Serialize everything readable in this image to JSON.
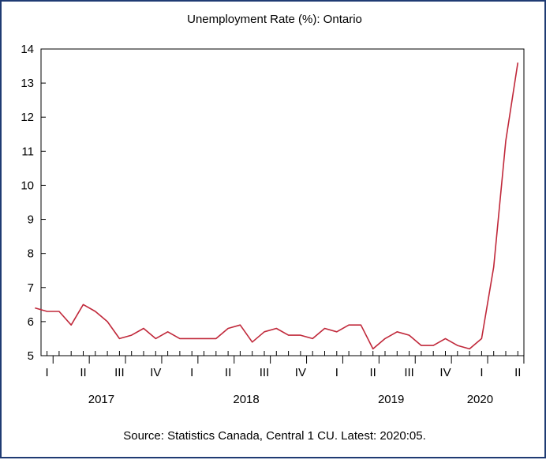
{
  "chart_data": {
    "type": "line",
    "title": "Unemployment Rate (%): Ontario",
    "xlabel": "",
    "ylabel": "",
    "ylim": [
      5,
      14
    ],
    "yticks": [
      5,
      6,
      7,
      8,
      9,
      10,
      11,
      12,
      13,
      14
    ],
    "grid": false,
    "x": [
      "2017-01",
      "2017-02",
      "2017-03",
      "2017-04",
      "2017-05",
      "2017-06",
      "2017-07",
      "2017-08",
      "2017-09",
      "2017-10",
      "2017-11",
      "2017-12",
      "2018-01",
      "2018-02",
      "2018-03",
      "2018-04",
      "2018-05",
      "2018-06",
      "2018-07",
      "2018-08",
      "2018-09",
      "2018-10",
      "2018-11",
      "2018-12",
      "2019-01",
      "2019-02",
      "2019-03",
      "2019-04",
      "2019-05",
      "2019-06",
      "2019-07",
      "2019-08",
      "2019-09",
      "2019-10",
      "2019-11",
      "2019-12",
      "2020-01",
      "2020-02",
      "2020-03",
      "2020-04",
      "2020-05"
    ],
    "series": [
      {
        "color": "#c0283a",
        "values": [
          6.4,
          6.3,
          6.3,
          5.9,
          6.5,
          6.3,
          6.0,
          5.5,
          5.6,
          5.8,
          5.5,
          5.7,
          5.5,
          5.5,
          5.5,
          5.5,
          5.8,
          5.9,
          5.4,
          5.7,
          5.8,
          5.6,
          5.6,
          5.5,
          5.8,
          5.7,
          5.9,
          5.9,
          5.2,
          5.5,
          5.7,
          5.6,
          5.3,
          5.3,
          5.5,
          5.3,
          5.2,
          5.5,
          7.6,
          11.3,
          13.6
        ]
      }
    ],
    "quarter_labels": [
      "I",
      "II",
      "III",
      "IV",
      "I",
      "II",
      "III",
      "IV",
      "I",
      "II",
      "III",
      "IV",
      "I",
      "II"
    ],
    "year_labels": [
      "2017",
      "2018",
      "2019",
      "2020"
    ]
  },
  "source_note": "Source: Statistics Canada, Central 1 CU. Latest: 2020:05."
}
